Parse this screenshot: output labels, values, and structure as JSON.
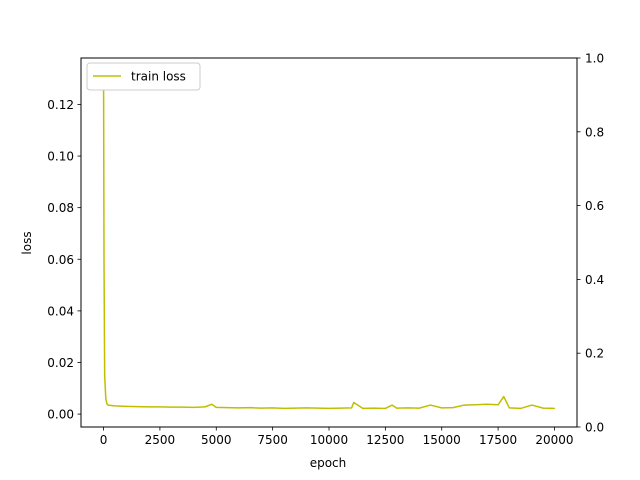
{
  "chart_data": {
    "type": "line",
    "xlabel": "epoch",
    "ylabel": "loss",
    "xlim": [
      -1000,
      21000
    ],
    "ylim": [
      -0.005,
      0.138
    ],
    "y2lim": [
      0,
      1
    ],
    "grid": false,
    "legend_position": "top-left",
    "x_ticks": [
      0,
      2500,
      5000,
      7500,
      10000,
      12500,
      15000,
      17500,
      20000
    ],
    "x_tick_labels": [
      "0",
      "2500",
      "5000",
      "7500",
      "10000",
      "12500",
      "15000",
      "17500",
      "20000"
    ],
    "y_ticks": [
      0.0,
      0.02,
      0.04,
      0.06,
      0.08,
      0.1,
      0.12
    ],
    "y_tick_labels": [
      "0.00",
      "0.02",
      "0.04",
      "0.06",
      "0.08",
      "0.10",
      "0.12"
    ],
    "y2_ticks": [
      0.0,
      0.2,
      0.4,
      0.6,
      0.8,
      1.0
    ],
    "y2_tick_labels": [
      "0.0",
      "0.2",
      "0.4",
      "0.6",
      "0.8",
      "1.0"
    ],
    "series": [
      {
        "name": "train loss",
        "color": "#bfbf00",
        "x": [
          0,
          20,
          50,
          100,
          150,
          200,
          500,
          1000,
          1500,
          2000,
          2500,
          3000,
          3500,
          4000,
          4500,
          4800,
          5000,
          5500,
          6000,
          6500,
          7000,
          7500,
          8000,
          8500,
          9000,
          9500,
          10000,
          10500,
          11000,
          11100,
          11500,
          12000,
          12500,
          12800,
          13000,
          13500,
          14000,
          14500,
          15000,
          15500,
          16000,
          16500,
          17000,
          17500,
          17750,
          18000,
          18500,
          19000,
          19500,
          20000
        ],
        "y": [
          0.135,
          0.06,
          0.015,
          0.006,
          0.004,
          0.0035,
          0.0032,
          0.003,
          0.0029,
          0.0028,
          0.0028,
          0.0027,
          0.0027,
          0.0026,
          0.0028,
          0.0038,
          0.0026,
          0.0025,
          0.0024,
          0.0025,
          0.0023,
          0.0024,
          0.0022,
          0.0023,
          0.0024,
          0.0023,
          0.0022,
          0.0023,
          0.0024,
          0.0045,
          0.0022,
          0.0023,
          0.0022,
          0.0035,
          0.0023,
          0.0024,
          0.0023,
          0.0035,
          0.0024,
          0.0025,
          0.0035,
          0.0036,
          0.0038,
          0.0036,
          0.0068,
          0.0024,
          0.0022,
          0.0035,
          0.0023,
          0.0022
        ]
      }
    ]
  }
}
